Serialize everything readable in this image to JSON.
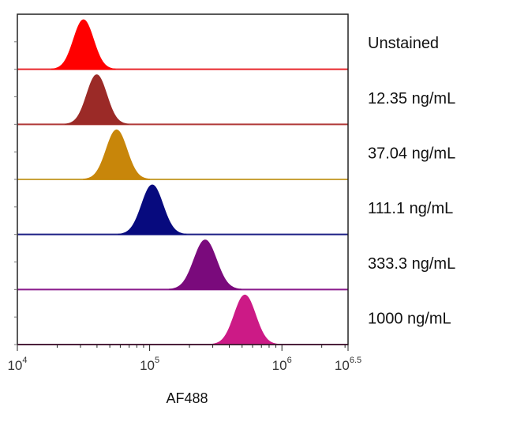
{
  "chart_data": {
    "type": "histogram_overlay",
    "title": "",
    "xlabel": "AF488",
    "ylabel": "",
    "x_scale": "log10",
    "xlim_log10": [
      4,
      6.5
    ],
    "x_ticks": [
      {
        "base": "10",
        "exp": "4",
        "log10": 4
      },
      {
        "base": "10",
        "exp": "5",
        "log10": 5
      },
      {
        "base": "10",
        "exp": "6",
        "log10": 6
      },
      {
        "base": "10",
        "exp": "6.5",
        "log10": 6.5
      }
    ],
    "series": [
      {
        "name": "Unstained",
        "color": "#ff0000",
        "line_color": "#e8262b",
        "peak_log10": 4.5,
        "width": 0.075
      },
      {
        "name": "12.35 ng/mL",
        "color": "#9b2a27",
        "line_color": "#b03a39",
        "peak_log10": 4.6,
        "width": 0.075
      },
      {
        "name": "37.04 ng/mL",
        "color": "#c8860a",
        "line_color": "#c8a23a",
        "peak_log10": 4.75,
        "width": 0.078
      },
      {
        "name": "111.1 ng/mL",
        "color": "#070a7e",
        "line_color": "#1c1f84",
        "peak_log10": 5.02,
        "width": 0.08
      },
      {
        "name": "333.3 ng/mL",
        "color": "#7a0a7c",
        "line_color": "#8a1b8c",
        "peak_log10": 5.42,
        "width": 0.085
      },
      {
        "name": "1000 ng/mL",
        "color": "#cc1a86",
        "line_color": "#cc1a86",
        "peak_log10": 5.72,
        "width": 0.08
      }
    ]
  }
}
